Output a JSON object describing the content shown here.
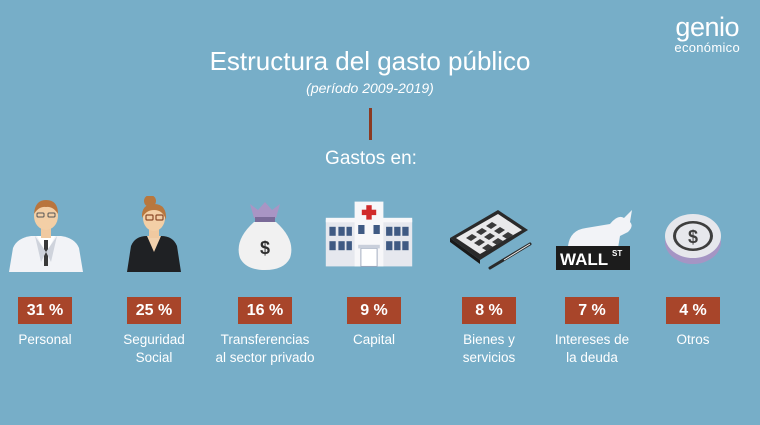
{
  "brand": {
    "line1": "genio",
    "line2": "económico"
  },
  "chart_data": {
    "type": "table",
    "title": "Estructura del gasto público",
    "subtitle": "(período 2009-2019)",
    "heading": "Gastos en:",
    "categories": [
      {
        "label": "Personal",
        "value": 31,
        "display": "31 %",
        "icon": "office-worker-icon"
      },
      {
        "label": "Seguridad Social",
        "value": 25,
        "display": "25 %",
        "icon": "elderly-woman-icon"
      },
      {
        "label": "Transferencias al sector privado",
        "value": 16,
        "display": "16 %",
        "icon": "money-bag-icon"
      },
      {
        "label": "Capital",
        "value": 9,
        "display": "9 %",
        "icon": "hospital-building-icon"
      },
      {
        "label": "Bienes y servicios",
        "value": 8,
        "display": "8 %",
        "icon": "calculator-pen-icon"
      },
      {
        "label": "Intereses de la deuda",
        "value": 7,
        "display": "7 %",
        "icon": "wall-street-bull-icon"
      },
      {
        "label": "Otros",
        "value": 4,
        "display": "4 %",
        "icon": "dollar-coin-icon"
      }
    ],
    "icon_text": {
      "wall": "WALL",
      "st": "ST",
      "bag": "$",
      "coin": "$"
    }
  }
}
